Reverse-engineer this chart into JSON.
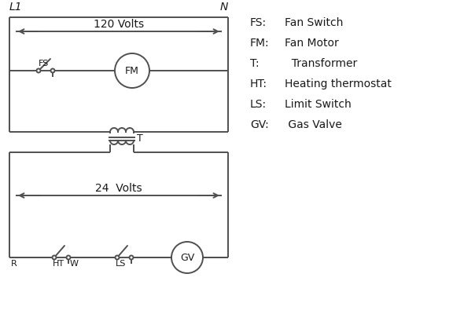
{
  "bg_color": "#ffffff",
  "line_color": "#505050",
  "text_color": "#1a1a1a",
  "legend_items": [
    [
      "FS:",
      "Fan Switch"
    ],
    [
      "FM:",
      "Fan Motor"
    ],
    [
      "T:",
      "  Transformer"
    ],
    [
      "HT:",
      "Heating thermostat"
    ],
    [
      "LS:",
      "Limit Switch"
    ],
    [
      "GV:",
      " Gas Valve"
    ]
  ],
  "label_L1": "L1",
  "label_N": "N",
  "label_120V": "120 Volts",
  "label_24V": "24  Volts",
  "label_T": "T",
  "label_FS": "FS",
  "label_FM": "FM",
  "label_GV": "GV",
  "label_HT": "HT",
  "label_LS": "LS",
  "label_R": "R",
  "label_W": "W"
}
